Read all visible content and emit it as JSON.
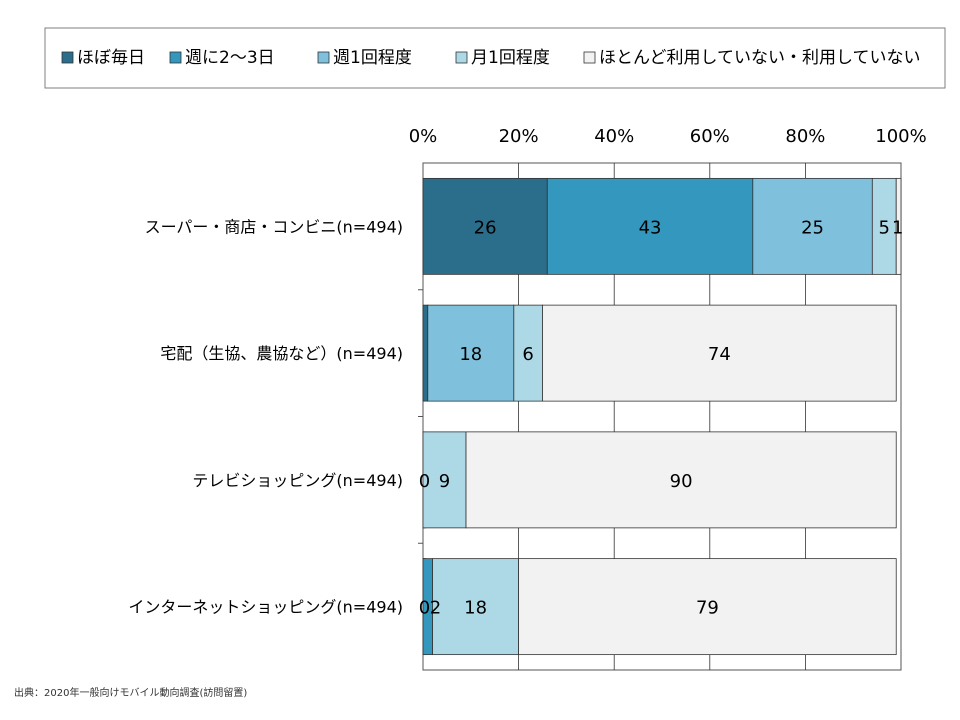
{
  "chart_data": {
    "type": "bar",
    "orientation": "horizontal",
    "stacked": true,
    "normalized_percent": true,
    "categories": [
      "スーパー・商店・コンビニ(n=494)",
      "宅配（生協、農協など）(n=494)",
      "テレビショッピング(n=494)",
      "インターネットショッピング(n=494)"
    ],
    "series": [
      {
        "name": "ほぼ毎日",
        "color": "#2B6E8C",
        "values": [
          26,
          1,
          0,
          0
        ],
        "labels": [
          "26",
          "",
          "0",
          "0"
        ]
      },
      {
        "name": "週に2～3日",
        "color": "#3497BE",
        "values": [
          43,
          0,
          0,
          2
        ],
        "labels": [
          "43",
          "",
          "",
          "2"
        ]
      },
      {
        "name": "週1回程度",
        "color": "#7FC1DC",
        "values": [
          25,
          18,
          0,
          0
        ],
        "labels": [
          "25",
          "18",
          "",
          ""
        ]
      },
      {
        "name": "月1回程度",
        "color": "#ADD8E6",
        "values": [
          5,
          6,
          9,
          18
        ],
        "labels": [
          "5",
          "6",
          "9",
          "18"
        ]
      },
      {
        "name": "ほとんど利用していない・利用していない",
        "color": "#F2F2F2",
        "values": [
          1,
          74,
          90,
          79
        ],
        "labels": [
          "1",
          "74",
          "90",
          "79"
        ]
      }
    ],
    "ticks": [
      "0%",
      "20%",
      "40%",
      "60%",
      "80%",
      "100%"
    ],
    "xlim": [
      0,
      100
    ],
    "grid": true,
    "legend_position": "top"
  },
  "source": "出典：2020年一般向けモバイル動向調査(訪問留置)"
}
